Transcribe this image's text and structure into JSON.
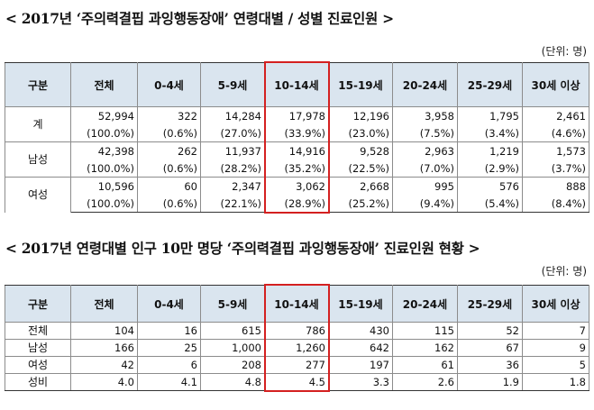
{
  "table1": {
    "title": "< 2017년 ‘주의력결핍 과잉행동장애’ 연령대별 / 성별 진료인원 >",
    "unit": "(단위: 명)",
    "headers": [
      "구분",
      "전체",
      "0-4세",
      "5-9세",
      "10-14세",
      "15-19세",
      "20-24세",
      "25-29세",
      "30세 이상"
    ],
    "rows": [
      {
        "label": "계",
        "counts": [
          "52,994",
          "322",
          "14,284",
          "17,978",
          "12,196",
          "3,958",
          "1,795",
          "2,461"
        ],
        "pcts": [
          "(100.0%)",
          "(0.6%)",
          "(27.0%)",
          "(33.9%)",
          "(23.0%)",
          "(7.5%)",
          "(3.4%)",
          "(4.6%)"
        ]
      },
      {
        "label": "남성",
        "counts": [
          "42,398",
          "262",
          "11,937",
          "14,916",
          "9,528",
          "2,963",
          "1,219",
          "1,573"
        ],
        "pcts": [
          "(100.0%)",
          "(0.6%)",
          "(28.2%)",
          "(35.2%)",
          "(22.5%)",
          "(7.0%)",
          "(2.9%)",
          "(3.7%)"
        ]
      },
      {
        "label": "여성",
        "counts": [
          "10,596",
          "60",
          "2,347",
          "3,062",
          "2,668",
          "995",
          "576",
          "888"
        ],
        "pcts": [
          "(100.0%)",
          "(0.6%)",
          "(22.1%)",
          "(28.9%)",
          "(25.2%)",
          "(9.4%)",
          "(5.4%)",
          "(8.4%)"
        ]
      }
    ]
  },
  "table2": {
    "title": "< 2017년 연령대별 인구 10만 명당 ‘주의력결핍 과잉행동장애’ 진료인원 현황 >",
    "unit": "(단위: 명)",
    "headers": [
      "구분",
      "전체",
      "0-4세",
      "5-9세",
      "10-14세",
      "15-19세",
      "20-24세",
      "25-29세",
      "30세 이상"
    ],
    "rows": [
      {
        "label": "전체",
        "values": [
          "104",
          "16",
          "615",
          "786",
          "430",
          "115",
          "52",
          "7"
        ]
      },
      {
        "label": "남성",
        "values": [
          "166",
          "25",
          "1,000",
          "1,260",
          "642",
          "162",
          "67",
          "9"
        ]
      },
      {
        "label": "여성",
        "values": [
          "42",
          "6",
          "208",
          "277",
          "197",
          "61",
          "36",
          "5"
        ]
      },
      {
        "label": "성비",
        "values": [
          "4.0",
          "4.1",
          "4.8",
          "4.5",
          "3.3",
          "2.6",
          "1.9",
          "1.8"
        ]
      }
    ]
  },
  "colors": {
    "header_bg": "#dae5ef",
    "highlight": "#d42020"
  }
}
